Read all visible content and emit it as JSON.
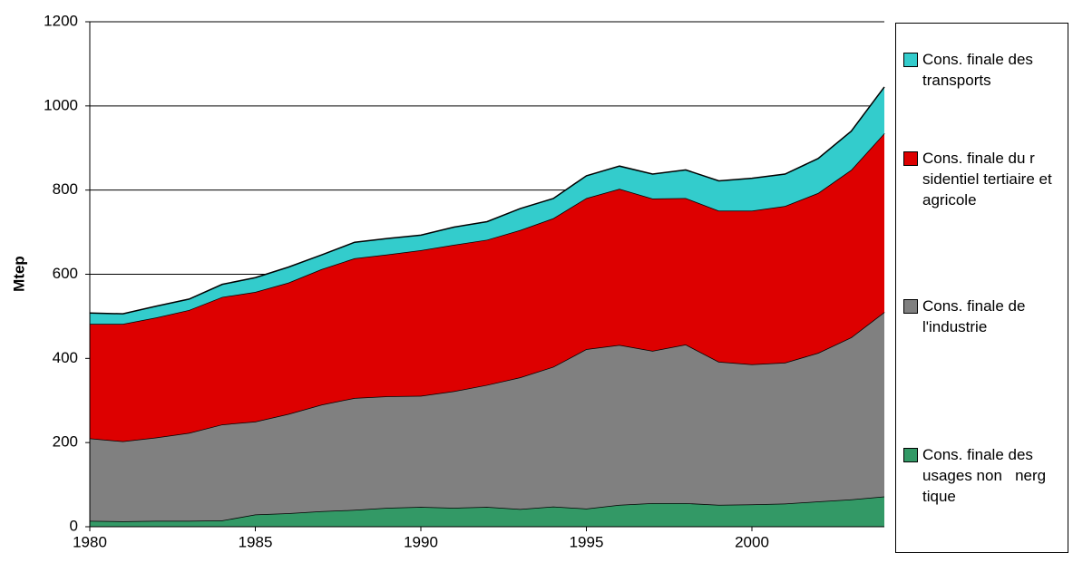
{
  "chart_data": {
    "type": "stacked_area",
    "y_label": "Mtep",
    "x": [
      1980,
      1981,
      1982,
      1983,
      1984,
      1985,
      1986,
      1987,
      1988,
      1989,
      1990,
      1991,
      1992,
      1993,
      1994,
      1995,
      1996,
      1997,
      1998,
      1999,
      2000,
      2001,
      2002,
      2003,
      2004
    ],
    "xlim": [
      1980,
      2004
    ],
    "xticks": [
      1980,
      1985,
      1990,
      1995,
      2000
    ],
    "ylim": [
      0,
      1200
    ],
    "yticks": [
      0,
      200,
      400,
      600,
      800,
      1000,
      1200
    ],
    "grid": true,
    "series": [
      {
        "name": "Cons. finale des usages non   nerg  tique",
        "color": "#339966",
        "values": [
          14,
          13,
          14,
          14,
          15,
          29,
          32,
          37,
          40,
          45,
          47,
          45,
          47,
          42,
          48,
          43,
          52,
          56,
          56,
          52,
          53,
          55,
          60,
          65,
          72
        ]
      },
      {
        "name": "Cons. finale de l'industrie",
        "color": "#808080",
        "values": [
          196,
          190,
          198,
          209,
          228,
          221,
          236,
          253,
          266,
          265,
          264,
          277,
          290,
          313,
          332,
          379,
          380,
          362,
          377,
          340,
          333,
          335,
          353,
          385,
          438
        ]
      },
      {
        "name": "Cons. finale du r   sidentiel tertiaire et agricole",
        "color": "#dd0000",
        "values": [
          272,
          279,
          285,
          292,
          303,
          308,
          312,
          322,
          332,
          337,
          346,
          348,
          345,
          350,
          353,
          359,
          371,
          362,
          348,
          359,
          365,
          372,
          380,
          398,
          425
        ]
      },
      {
        "name": "Cons. finale des transports",
        "color": "#33cccc",
        "values": [
          26,
          24,
          27,
          26,
          30,
          34,
          37,
          34,
          38,
          38,
          36,
          42,
          43,
          51,
          47,
          53,
          54,
          58,
          67,
          71,
          77,
          76,
          82,
          92,
          110
        ]
      }
    ]
  }
}
